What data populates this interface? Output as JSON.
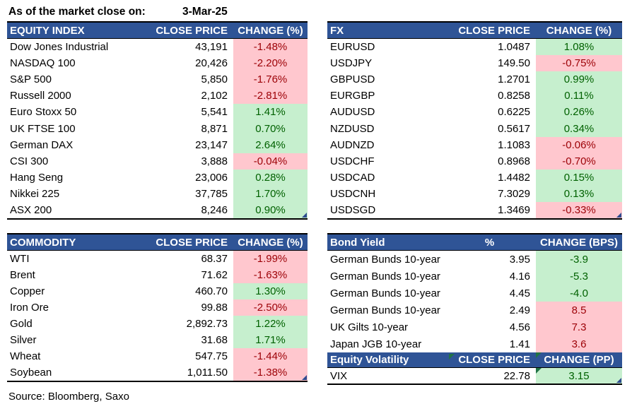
{
  "meta": {
    "as_of_label": "As of the market close on:",
    "as_of_date": "3-Mar-25",
    "source": "Source: Bloomberg, Saxo"
  },
  "colors": {
    "header_bg": "#2F5496",
    "green_bg": "#C6EFCE",
    "green_text": "#006100",
    "red_bg": "#FFC7CE",
    "red_text": "#9C0006"
  },
  "tables": [
    {
      "id": "equity",
      "headers": [
        "EQUITY INDEX",
        "CLOSE PRICE",
        "CHANGE (%)"
      ],
      "corner_marker": true,
      "rows": [
        {
          "name": "Dow Jones Industrial",
          "price": "43,191",
          "change": "-1.48%",
          "tone": "red"
        },
        {
          "name": "NASDAQ 100",
          "price": "20,426",
          "change": "-2.20%",
          "tone": "red"
        },
        {
          "name": "S&P 500",
          "price": "5,850",
          "change": "-1.76%",
          "tone": "red"
        },
        {
          "name": "Russell 2000",
          "price": "2,102",
          "change": "-2.81%",
          "tone": "red"
        },
        {
          "name": "Euro Stoxx 50",
          "price": "5,541",
          "change": "1.41%",
          "tone": "green"
        },
        {
          "name": "UK FTSE 100",
          "price": "8,871",
          "change": "0.70%",
          "tone": "green"
        },
        {
          "name": "German DAX",
          "price": "23,147",
          "change": "2.64%",
          "tone": "green"
        },
        {
          "name": "CSI 300",
          "price": "3,888",
          "change": "-0.04%",
          "tone": "red"
        },
        {
          "name": "Hang Seng",
          "price": "23,006",
          "change": "0.28%",
          "tone": "green"
        },
        {
          "name": "Nikkei 225",
          "price": "37,785",
          "change": "1.70%",
          "tone": "green"
        },
        {
          "name": "ASX 200",
          "price": "8,246",
          "change": "0.90%",
          "tone": "green"
        }
      ]
    },
    {
      "id": "fx",
      "headers": [
        "FX",
        "CLOSE PRICE",
        "CHANGE (%)"
      ],
      "corner_marker": true,
      "rows": [
        {
          "name": "EURUSD",
          "price": "1.0487",
          "change": "1.08%",
          "tone": "green"
        },
        {
          "name": "USDJPY",
          "price": "149.50",
          "change": "-0.75%",
          "tone": "red"
        },
        {
          "name": "GBPUSD",
          "price": "1.2701",
          "change": "0.99%",
          "tone": "green"
        },
        {
          "name": "EURGBP",
          "price": "0.8258",
          "change": "0.11%",
          "tone": "green"
        },
        {
          "name": "AUDUSD",
          "price": "0.6225",
          "change": "0.26%",
          "tone": "green"
        },
        {
          "name": "NZDUSD",
          "price": "0.5617",
          "change": "0.34%",
          "tone": "green"
        },
        {
          "name": "AUDNZD",
          "price": "1.1083",
          "change": "-0.06%",
          "tone": "red"
        },
        {
          "name": "USDCHF",
          "price": "0.8968",
          "change": "-0.70%",
          "tone": "red"
        },
        {
          "name": "USDCAD",
          "price": "1.4482",
          "change": "0.15%",
          "tone": "green"
        },
        {
          "name": "USDCNH",
          "price": "7.3029",
          "change": "0.13%",
          "tone": "green"
        },
        {
          "name": "USDSGD",
          "price": "1.3469",
          "change": "-0.33%",
          "tone": "red"
        }
      ]
    },
    {
      "id": "commodity",
      "headers": [
        "COMMODITY",
        "CLOSE PRICE",
        "CHANGE (%)"
      ],
      "corner_marker": true,
      "rows": [
        {
          "name": "WTI",
          "price": "68.37",
          "change": "-1.99%",
          "tone": "red"
        },
        {
          "name": "Brent",
          "price": "71.62",
          "change": "-1.63%",
          "tone": "red"
        },
        {
          "name": "Copper",
          "price": "460.70",
          "change": "1.30%",
          "tone": "green"
        },
        {
          "name": "Iron Ore",
          "price": "99.88",
          "change": "-2.50%",
          "tone": "red"
        },
        {
          "name": "Gold",
          "price": "2,892.73",
          "change": "1.22%",
          "tone": "green"
        },
        {
          "name": "Silver",
          "price": "31.68",
          "change": "1.71%",
          "tone": "green"
        },
        {
          "name": "Wheat",
          "price": "547.75",
          "change": "-1.44%",
          "tone": "red"
        },
        {
          "name": "Soybean",
          "price": "1,011.50",
          "change": "-1.38%",
          "tone": "red"
        }
      ]
    },
    {
      "id": "bond",
      "headers": [
        "Bond Yield",
        "%",
        "CHANGE (BPS)"
      ],
      "corner_marker": false,
      "price_header_center": true,
      "rows": [
        {
          "name": "German Bunds 10-year",
          "price": "3.95",
          "change": "-3.9",
          "tone": "green"
        },
        {
          "name": "German Bunds 10-year",
          "price": "4.16",
          "change": "-5.3",
          "tone": "green"
        },
        {
          "name": "German Bunds 10-year",
          "price": "4.45",
          "change": "-4.0",
          "tone": "green"
        },
        {
          "name": "German Bunds 10-year",
          "price": "2.49",
          "change": "8.5",
          "tone": "red"
        },
        {
          "name": "UK Gilts 10-year",
          "price": "4.56",
          "change": "7.3",
          "tone": "red"
        },
        {
          "name": "Japan JGB 10-year",
          "price": "1.41",
          "change": "3.6",
          "tone": "red"
        }
      ]
    },
    {
      "id": "volatility",
      "headers": [
        "Equity Volatility",
        "CLOSE PRICE",
        "CHANGE (PP)"
      ],
      "corner_marker": true,
      "header_error_indicators": [
        1,
        2
      ],
      "rows": [
        {
          "name": "VIX",
          "price": "22.78",
          "change": "3.15",
          "tone": "green",
          "error_indicator": true
        }
      ]
    }
  ]
}
